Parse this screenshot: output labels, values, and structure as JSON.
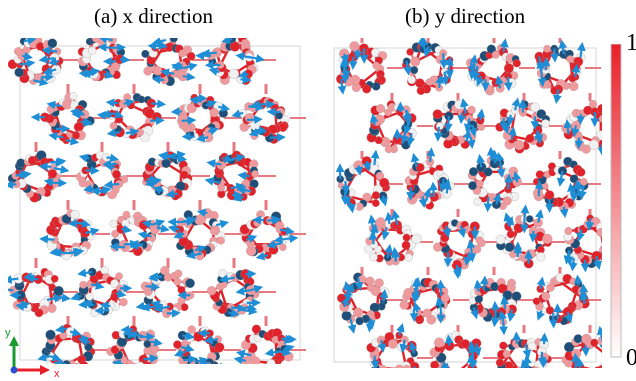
{
  "panels": [
    {
      "id": "a",
      "title": "(a) x direction",
      "arrow_direction": "x"
    },
    {
      "id": "b",
      "title": "(b) y direction",
      "arrow_direction": "y"
    }
  ],
  "colorbar": {
    "max_label": "1",
    "min_label": "0",
    "colors": {
      "high": "#e8202a",
      "low": "#ffffff"
    }
  },
  "axes_indicator": {
    "x_label": "x",
    "y_label": "y",
    "colors": {
      "x": "#e8202a",
      "y": "#1a9a30"
    }
  },
  "colors": {
    "arrow": "#1e8ed6",
    "atom_red": "#e2222a",
    "atom_pink": "#f19a9e",
    "atom_white": "#f1f1f1",
    "atom_dark": "#1f4f78",
    "bond": "#e67a80",
    "box": "#d5d5d5"
  }
}
